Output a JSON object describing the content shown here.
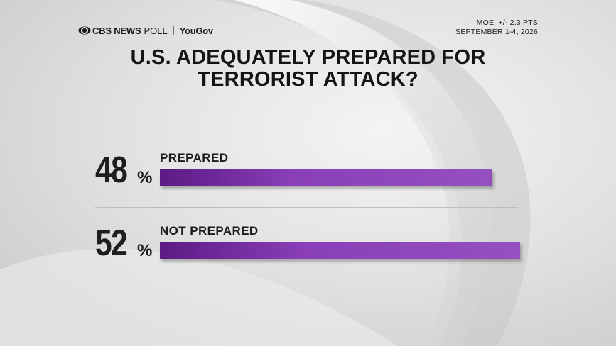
{
  "header": {
    "brand_cbs": "CBS NEWS",
    "brand_poll": "POLL",
    "brand_partner": "YouGov",
    "moe": "MOE: +/- 2.3 PTS",
    "dates": "SEPTEMBER 1-4, 2026"
  },
  "chart_data": {
    "type": "bar",
    "title": "U.S. ADEQUATELY PREPARED FOR TERRORIST ATTACK?",
    "categories": [
      "PREPARED",
      "NOT PREPARED"
    ],
    "values": [
      48,
      52
    ],
    "value_labels": [
      "48",
      "52"
    ],
    "unit": "%",
    "xlim": [
      0,
      52
    ],
    "bar_color": "#8a3fb8",
    "grid": false
  }
}
